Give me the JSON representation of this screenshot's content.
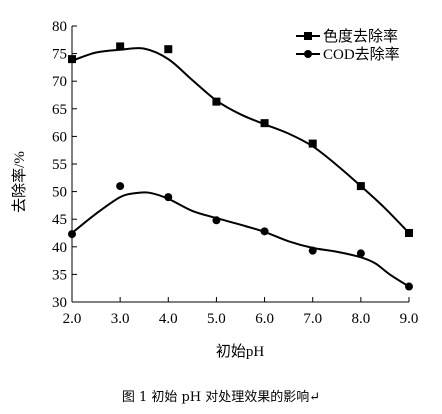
{
  "chart_data": {
    "type": "line",
    "xlabel": "初始pH",
    "ylabel": "去除率/%",
    "xlim": [
      2.0,
      9.0
    ],
    "ylim": [
      30,
      80
    ],
    "x_ticks": [
      "2.0",
      "3.0",
      "4.0",
      "5.0",
      "6.0",
      "7.0",
      "8.0",
      "9.0"
    ],
    "y_ticks": [
      "30",
      "35",
      "40",
      "45",
      "50",
      "55",
      "60",
      "65",
      "70",
      "75",
      "80"
    ],
    "grid": false,
    "legend_position": "top-right",
    "series": [
      {
        "name": "色度去除率",
        "marker": "square",
        "x": [
          2.0,
          3.0,
          4.0,
          5.0,
          6.0,
          7.0,
          8.0,
          9.0
        ],
        "values": [
          74.0,
          76.3,
          75.8,
          66.3,
          62.4,
          58.7,
          51.0,
          42.5
        ],
        "curve": [
          [
            2.0,
            73.7
          ],
          [
            2.5,
            75.2
          ],
          [
            3.0,
            75.7
          ],
          [
            3.5,
            75.9
          ],
          [
            4.0,
            74.0
          ],
          [
            4.5,
            70.2
          ],
          [
            5.0,
            66.5
          ],
          [
            5.5,
            64.0
          ],
          [
            6.0,
            62.2
          ],
          [
            6.5,
            60.5
          ],
          [
            7.0,
            58.2
          ],
          [
            7.5,
            54.8
          ],
          [
            8.0,
            51.0
          ],
          [
            8.5,
            47.0
          ],
          [
            9.0,
            42.5
          ]
        ]
      },
      {
        "name": "COD去除率",
        "marker": "circle",
        "x": [
          2.0,
          3.0,
          4.0,
          5.0,
          6.0,
          7.0,
          8.0,
          9.0
        ],
        "values": [
          42.3,
          51.0,
          49.0,
          44.8,
          42.8,
          39.3,
          38.8,
          32.8
        ],
        "curve": [
          [
            2.0,
            42.5
          ],
          [
            2.5,
            46.0
          ],
          [
            3.0,
            49.0
          ],
          [
            3.3,
            49.7
          ],
          [
            3.6,
            49.8
          ],
          [
            4.0,
            48.7
          ],
          [
            4.5,
            46.5
          ],
          [
            5.0,
            45.2
          ],
          [
            5.5,
            44.0
          ],
          [
            6.0,
            42.7
          ],
          [
            6.5,
            41.0
          ],
          [
            7.0,
            39.8
          ],
          [
            7.5,
            39.1
          ],
          [
            8.0,
            38.1
          ],
          [
            8.3,
            37.0
          ],
          [
            8.6,
            35.0
          ],
          [
            9.0,
            32.8
          ]
        ]
      }
    ]
  },
  "caption": "图 1  初始 pH 对处理效果的影响↵"
}
